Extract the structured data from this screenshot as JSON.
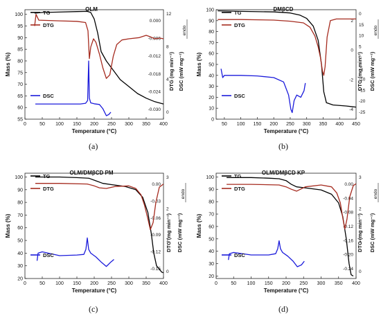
{
  "chart_data": [
    {
      "panel_label": "(a)",
      "type": "line",
      "title": "OLM",
      "xlabel": "Temperature (°C)",
      "ylabel_left": "Mass (%)",
      "ylabel_right1": "DTG (mg min⁻¹)",
      "ylabel_right2": "DSC (mW mg⁻¹)",
      "endo_label": "endo",
      "xlim": [
        0,
        400
      ],
      "xticks": [
        0,
        50,
        100,
        150,
        200,
        250,
        300,
        350,
        400
      ],
      "ylim_left": [
        55,
        102
      ],
      "yticks_left": [
        55,
        60,
        65,
        70,
        75,
        80,
        85,
        90,
        95,
        100
      ],
      "right1_ticks": [
        "0.000",
        "-0.006",
        "-0.012",
        "-0.018",
        "-0.024",
        "-0.030"
      ],
      "right2_ticks": [
        "12",
        "8",
        "4",
        "0"
      ],
      "series": [
        {
          "name": "TG",
          "color": "#000000",
          "points": [
            [
              28,
              100.5
            ],
            [
              50,
              100.8
            ],
            [
              100,
              101
            ],
            [
              150,
              101.2
            ],
            [
              180,
              101.3
            ],
            [
              190,
              100.8
            ],
            [
              200,
              98
            ],
            [
              210,
              92
            ],
            [
              220,
              84
            ],
            [
              235,
              80
            ],
            [
              250,
              77
            ],
            [
              275,
              72
            ],
            [
              300,
              69
            ],
            [
              325,
              66
            ],
            [
              350,
              64
            ],
            [
              375,
              62.5
            ],
            [
              400,
              61.5
            ]
          ]
        },
        {
          "name": "DTG",
          "color": "#a52a1e",
          "points": [
            [
              28,
              95
            ],
            [
              32,
              100
            ],
            [
              40,
              97.5
            ],
            [
              100,
              97.2
            ],
            [
              150,
              97
            ],
            [
              175,
              96.5
            ],
            [
              182,
              93
            ],
            [
              186,
              81
            ],
            [
              190,
              86
            ],
            [
              198,
              89.5
            ],
            [
              205,
              88
            ],
            [
              215,
              83
            ],
            [
              225,
              77
            ],
            [
              235,
              72.5
            ],
            [
              245,
              74
            ],
            [
              255,
              82
            ],
            [
              265,
              87
            ],
            [
              280,
              89
            ],
            [
              300,
              89.5
            ],
            [
              330,
              90
            ],
            [
              350,
              91
            ],
            [
              360,
              90.5
            ],
            [
              375,
              89.5
            ],
            [
              390,
              89.8
            ],
            [
              400,
              89.5
            ]
          ]
        },
        {
          "name": "DSC",
          "color": "#1a1adb",
          "points": [
            [
              30,
              61.5
            ],
            [
              100,
              61.5
            ],
            [
              160,
              61.5
            ],
            [
              175,
              61.8
            ],
            [
              181,
              63
            ],
            [
              184,
              80
            ],
            [
              186,
              64
            ],
            [
              190,
              62
            ],
            [
              200,
              61.6
            ],
            [
              215,
              61.3
            ],
            [
              225,
              59.5
            ],
            [
              235,
              56.5
            ],
            [
              242,
              57
            ],
            [
              248,
              58
            ]
          ]
        }
      ]
    },
    {
      "panel_label": "(b)",
      "type": "line",
      "title": "DMβCD",
      "xlabel": "Temperature (°C)",
      "ylabel_left": "Mass (%)",
      "ylabel_right1": "DTG (mg min⁻¹)",
      "ylabel_right2": "DSC (mW mg⁻¹)",
      "endo_label": "endo",
      "xlim": [
        25,
        450
      ],
      "xticks": [
        50,
        100,
        150,
        200,
        250,
        300,
        350,
        400,
        450
      ],
      "ylim_left": [
        0,
        100
      ],
      "yticks_left": [
        0,
        10,
        20,
        30,
        40,
        50,
        60,
        70,
        80,
        90,
        100
      ],
      "right2_ticks": [
        "0",
        "15",
        "10",
        "5",
        "0",
        "-5",
        "-10",
        "-15",
        "-20",
        "-25"
      ],
      "right_ticks_extra": [
        "2",
        "0",
        "-2",
        "-4"
      ],
      "series": [
        {
          "name": "TG",
          "color": "#000000",
          "points": [
            [
              30,
              99
            ],
            [
              100,
              98.5
            ],
            [
              200,
              98
            ],
            [
              250,
              97
            ],
            [
              280,
              95
            ],
            [
              300,
              92
            ],
            [
              320,
              85
            ],
            [
              335,
              72
            ],
            [
              345,
              50
            ],
            [
              352,
              25
            ],
            [
              360,
              15
            ],
            [
              380,
              13
            ],
            [
              420,
              12
            ],
            [
              450,
              11
            ]
          ]
        },
        {
          "name": "DTG",
          "color": "#a52a1e",
          "points": [
            [
              30,
              91
            ],
            [
              100,
              91
            ],
            [
              200,
              90.5
            ],
            [
              250,
              89.5
            ],
            [
              290,
              88
            ],
            [
              310,
              84
            ],
            [
              325,
              76
            ],
            [
              335,
              66
            ],
            [
              342,
              56
            ],
            [
              348,
              44
            ],
            [
              352,
              40
            ],
            [
              356,
              48
            ],
            [
              362,
              75
            ],
            [
              372,
              90
            ],
            [
              390,
              91.5
            ],
            [
              450,
              91.5
            ]
          ]
        },
        {
          "name": "DSC",
          "color": "#1a1adb",
          "points": [
            [
              40,
              46
            ],
            [
              45,
              38
            ],
            [
              50,
              40
            ],
            [
              100,
              40
            ],
            [
              150,
              39.5
            ],
            [
              200,
              38
            ],
            [
              230,
              34
            ],
            [
              245,
              22
            ],
            [
              252,
              9
            ],
            [
              256,
              6
            ],
            [
              262,
              17
            ],
            [
              270,
              22
            ],
            [
              282,
              20
            ],
            [
              292,
              26
            ],
            [
              296,
              33
            ]
          ]
        }
      ]
    },
    {
      "panel_label": "(c)",
      "type": "line",
      "title": "OLM/DMβCD PM",
      "xlabel": "Temperature (°C)",
      "ylabel_left": "Mass (%)",
      "ylabel_right1": "DTG (mg min⁻¹)",
      "ylabel_right2": "DSC (mW mg⁻¹)",
      "endo_label": "endo",
      "xlim": [
        0,
        400
      ],
      "xticks": [
        0,
        50,
        100,
        150,
        200,
        250,
        300,
        350,
        400
      ],
      "ylim_left": [
        20,
        103
      ],
      "yticks_left": [
        20,
        30,
        40,
        50,
        60,
        70,
        80,
        90,
        100
      ],
      "right1_ticks": [
        "0.00",
        "-0.03",
        "-0.06",
        "-0.09",
        "-0.12",
        "-0.15"
      ],
      "right2_ticks": [
        "3",
        "2",
        "1",
        "0"
      ],
      "series": [
        {
          "name": "TG",
          "color": "#000000",
          "points": [
            [
              30,
              100
            ],
            [
              100,
              100
            ],
            [
              150,
              99.5
            ],
            [
              185,
              99
            ],
            [
              205,
              97
            ],
            [
              225,
              95
            ],
            [
              250,
              94
            ],
            [
              290,
              92.5
            ],
            [
              320,
              90
            ],
            [
              340,
              84
            ],
            [
              355,
              72
            ],
            [
              365,
              55
            ],
            [
              372,
              40
            ],
            [
              380,
              30
            ],
            [
              395,
              25
            ],
            [
              400,
              24.5
            ]
          ]
        },
        {
          "name": "DTG",
          "color": "#a52a1e",
          "points": [
            [
              30,
              95
            ],
            [
              100,
              95
            ],
            [
              180,
              94.5
            ],
            [
              200,
              93
            ],
            [
              215,
              91.5
            ],
            [
              235,
              91
            ],
            [
              260,
              92.5
            ],
            [
              300,
              93
            ],
            [
              320,
              91
            ],
            [
              335,
              86
            ],
            [
              345,
              78
            ],
            [
              355,
              67
            ],
            [
              362,
              58.5
            ],
            [
              370,
              64
            ],
            [
              378,
              80
            ],
            [
              388,
              92
            ],
            [
              400,
              94.5
            ]
          ]
        },
        {
          "name": "DSC",
          "color": "#1a1adb",
          "points": [
            [
              35,
              34
            ],
            [
              38,
              40
            ],
            [
              50,
              41
            ],
            [
              100,
              38
            ],
            [
              150,
              38.5
            ],
            [
              170,
              39
            ],
            [
              176,
              43
            ],
            [
              180,
              52
            ],
            [
              184,
              43
            ],
            [
              190,
              40
            ],
            [
              205,
              37
            ],
            [
              220,
              33
            ],
            [
              235,
              29.5
            ],
            [
              248,
              33
            ],
            [
              257,
              35
            ]
          ]
        }
      ]
    },
    {
      "panel_label": "(d)",
      "type": "line",
      "title": "OLM/DMβCD KP",
      "xlabel": "Temperature (°C)",
      "ylabel_left": "Mass (%)",
      "ylabel_right1": "DTG (mg min⁻¹)",
      "ylabel_right2": "DSC (mW mg⁻¹)",
      "endo_label": "endo",
      "xlim": [
        0,
        400
      ],
      "xticks": [
        0,
        50,
        100,
        150,
        200,
        250,
        300,
        350,
        400
      ],
      "ylim_left": [
        18,
        103
      ],
      "yticks_left": [
        20,
        30,
        40,
        50,
        60,
        70,
        80,
        90,
        100
      ],
      "right1_ticks": [
        "0.00",
        "-0.04",
        "-0.08",
        "-0.12",
        "-0.16",
        "-0.20",
        "-0.24"
      ],
      "right2_ticks": [
        "3",
        "2",
        "1",
        "0"
      ],
      "series": [
        {
          "name": "TG",
          "color": "#000000",
          "points": [
            [
              30,
              99.5
            ],
            [
              100,
              99.5
            ],
            [
              150,
              99
            ],
            [
              180,
              98.5
            ],
            [
              200,
              97
            ],
            [
              215,
              94
            ],
            [
              230,
              92
            ],
            [
              260,
              91
            ],
            [
              300,
              89.5
            ],
            [
              330,
              86
            ],
            [
              350,
              79
            ],
            [
              362,
              68
            ],
            [
              372,
              50
            ],
            [
              380,
              30
            ],
            [
              386,
              21
            ],
            [
              392,
              20
            ]
          ]
        },
        {
          "name": "DTG",
          "color": "#a52a1e",
          "points": [
            [
              30,
              94
            ],
            [
              100,
              94
            ],
            [
              180,
              93.5
            ],
            [
              200,
              92
            ],
            [
              215,
              90
            ],
            [
              230,
              88.5
            ],
            [
              255,
              92
            ],
            [
              300,
              93.5
            ],
            [
              330,
              92
            ],
            [
              345,
              87
            ],
            [
              355,
              79
            ],
            [
              362,
              67
            ],
            [
              368,
              58
            ],
            [
              374,
              66
            ],
            [
              382,
              84
            ],
            [
              392,
              93
            ],
            [
              400,
              94.5
            ]
          ]
        },
        {
          "name": "DSC",
          "color": "#1a1adb",
          "points": [
            [
              35,
              33
            ],
            [
              38,
              38
            ],
            [
              50,
              39
            ],
            [
              100,
              37
            ],
            [
              150,
              37
            ],
            [
              170,
              38
            ],
            [
              176,
              42
            ],
            [
              180,
              48.5
            ],
            [
              184,
              42
            ],
            [
              190,
              39
            ],
            [
              205,
              36
            ],
            [
              220,
              32
            ],
            [
              232,
              27.5
            ],
            [
              244,
              29
            ],
            [
              252,
              32
            ]
          ]
        }
      ]
    }
  ]
}
